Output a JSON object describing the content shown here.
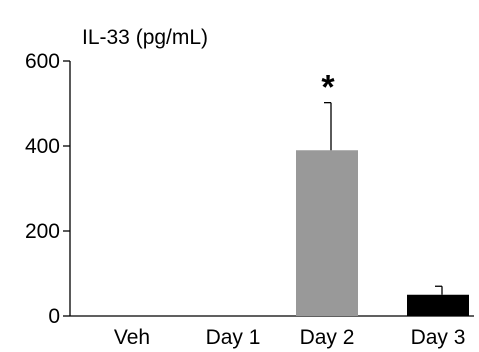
{
  "chart_data": {
    "type": "bar",
    "ylabel": "IL-33 (pg/mL)",
    "categories": [
      "Veh",
      "Day 1",
      "Day 2",
      "Day 3"
    ],
    "values": [
      0,
      0,
      390,
      50
    ],
    "errors": [
      0,
      0,
      112,
      20
    ],
    "bar_colors": [
      "#ffffff",
      "#ffffff",
      "#999999",
      "#000000"
    ],
    "annotations": [
      {
        "category": "Day 2",
        "text": "*"
      }
    ],
    "yticks": [
      "0",
      "200",
      "400",
      "600"
    ],
    "ylim": [
      0,
      600
    ],
    "grid": false,
    "legend": "none"
  }
}
